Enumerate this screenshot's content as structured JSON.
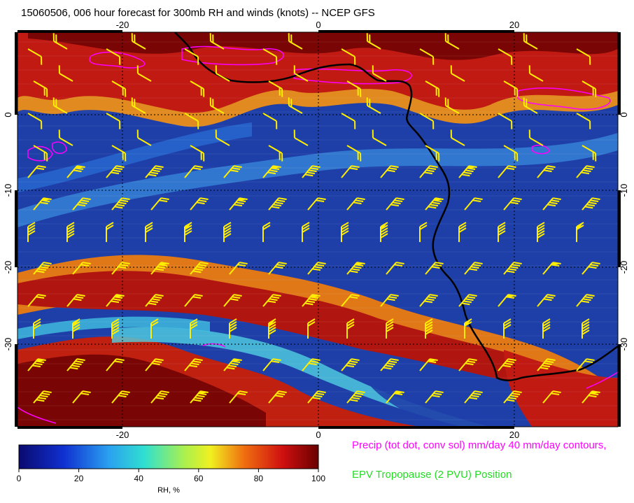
{
  "title": "15060506, 006 hour forecast for 300mb RH and winds (knots) -- NCEP GFS",
  "map": {
    "lon_ticks": [
      "-20",
      "0",
      "20"
    ],
    "lat_ticks": [
      "0",
      "-10",
      "-20",
      "-30"
    ],
    "colors": {
      "rh_low": "#1a2a9a",
      "rh_high": "#b01010",
      "coast": "#000000",
      "barb": "#ffee00",
      "precip": "#ff00ff"
    }
  },
  "colorbar": {
    "ticks": [
      "0",
      "20",
      "40",
      "60",
      "80",
      "100"
    ],
    "label": "RH, %"
  },
  "legend": {
    "precip": "Precip (tot dot, conv sol) mm/day 40 mm/day contours,",
    "epv": "EPV Tropopause (2 PVU) Position"
  }
}
